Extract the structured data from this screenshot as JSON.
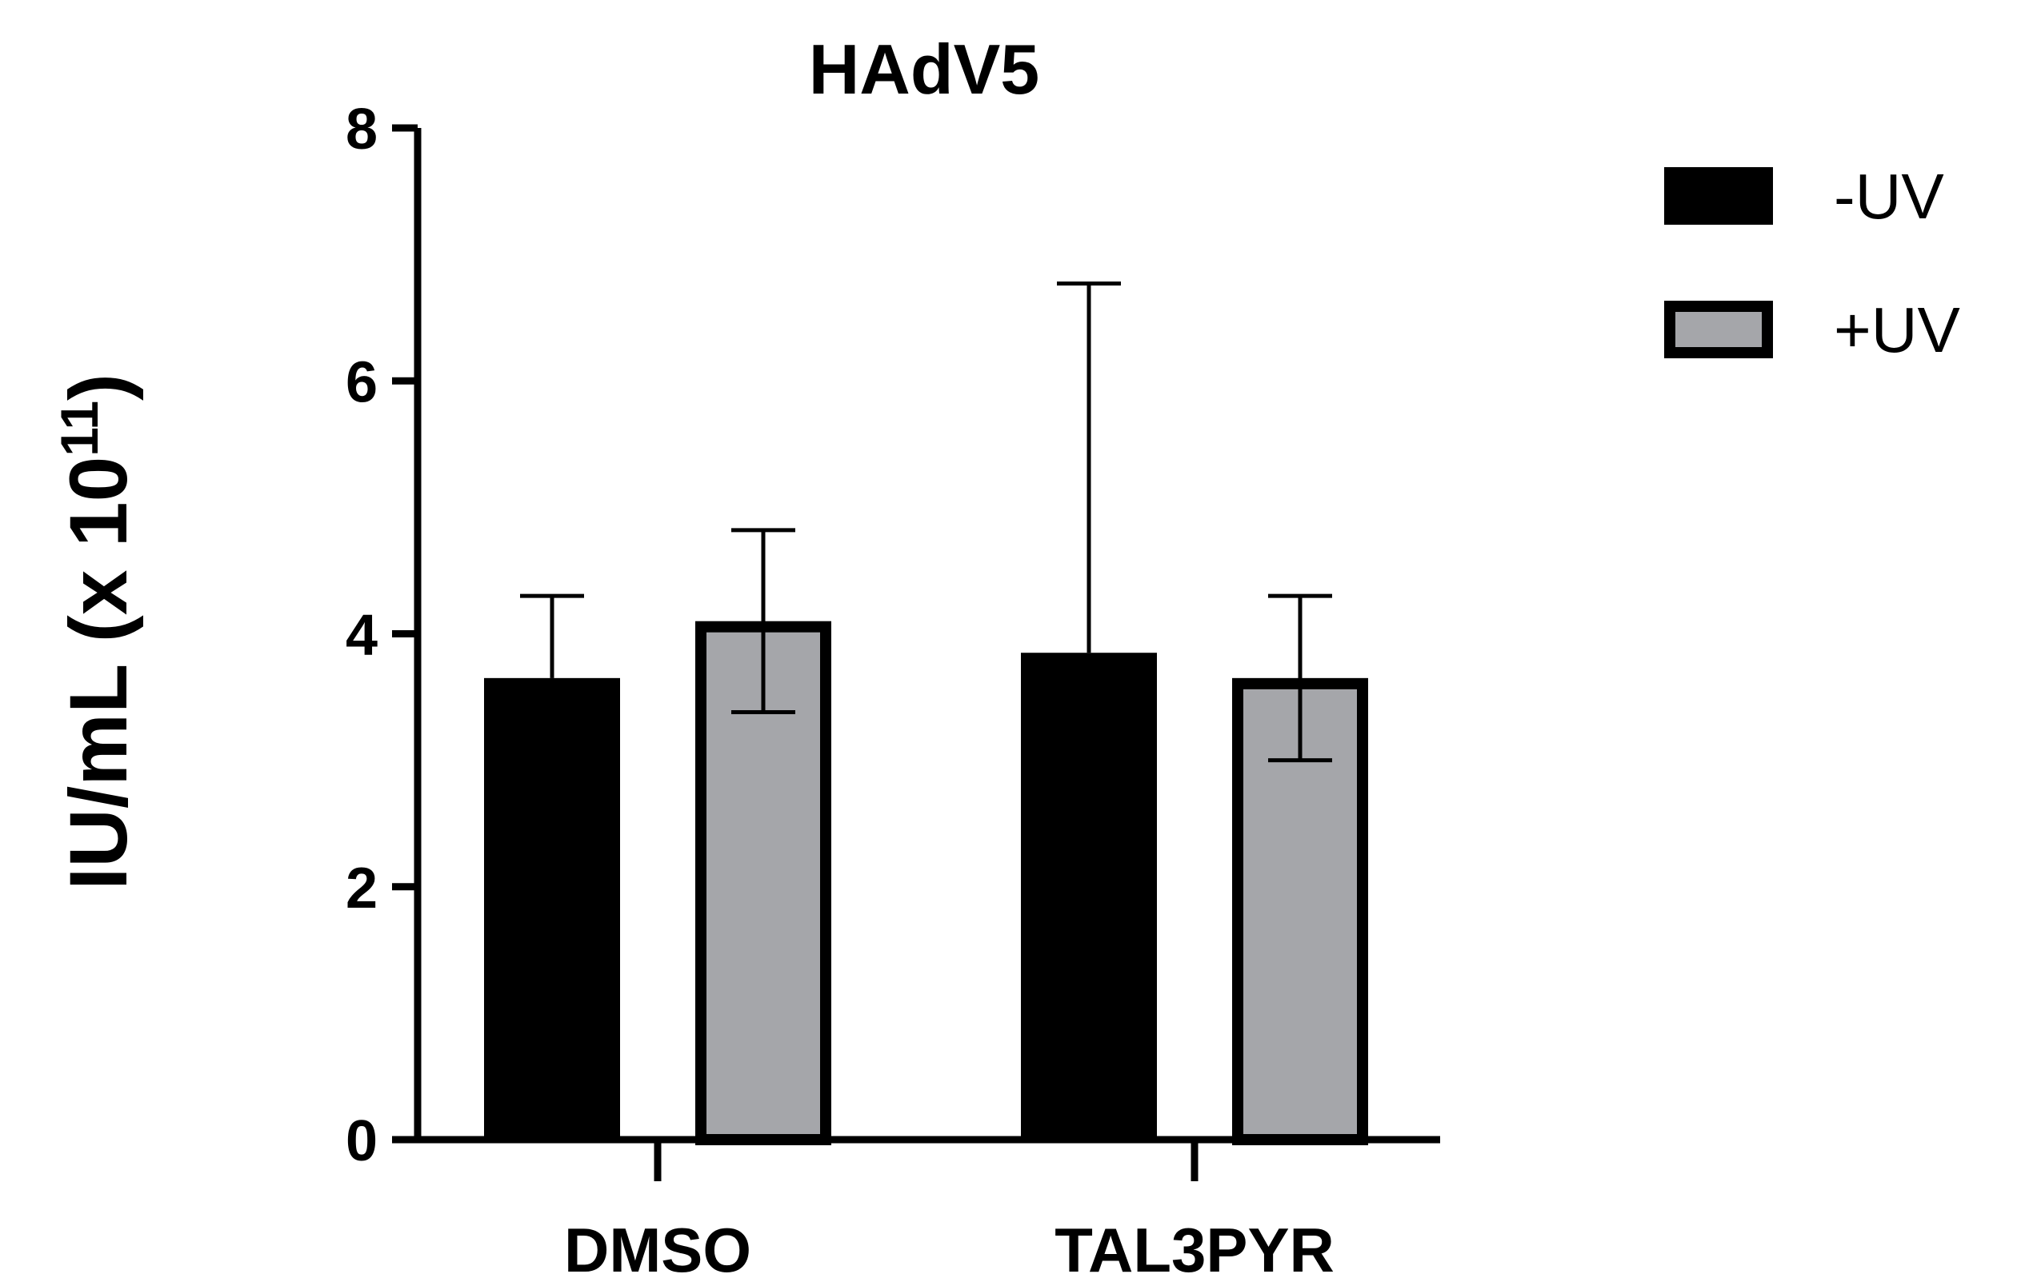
{
  "chart_data": {
    "type": "bar",
    "title": "HAdV5",
    "ylabel": {
      "prefix": "IU/mL (x 10",
      "superscript": "11",
      "suffix": ")"
    },
    "xlabel": "",
    "categories": [
      "DMSO",
      "TAL3PYR"
    ],
    "ylim": [
      0,
      8
    ],
    "yticks": [
      "0",
      "2",
      "4",
      "6",
      "8"
    ],
    "series": [
      {
        "name": "-UV",
        "values": [
          3.65,
          3.85
        ],
        "error": [
          0.65,
          2.92
        ],
        "color": "#000000"
      },
      {
        "name": "+UV",
        "values": [
          4.1,
          3.65
        ],
        "error": [
          0.72,
          0.65
        ],
        "color": "#a5a6aa"
      }
    ],
    "legend_position": "top-right",
    "grid": false
  }
}
